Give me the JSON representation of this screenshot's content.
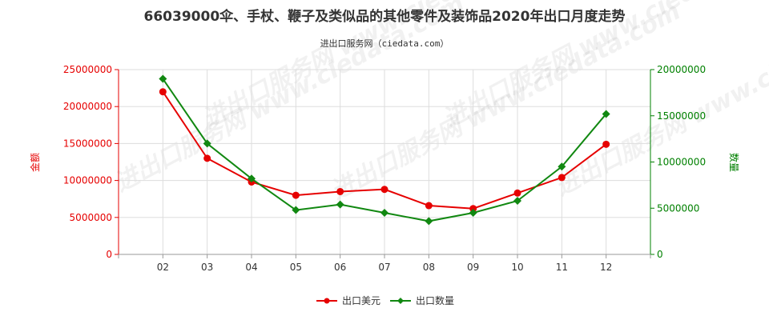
{
  "chart_data": {
    "type": "line",
    "title": "66039000伞、手杖、鞭子及类似品的其他零件及装饰品2020年出口月度走势",
    "subtitle": "进出口服务网（ciedata.com）",
    "watermark": "进出口服务网 www.ciedata.com",
    "categories": [
      "02",
      "03",
      "04",
      "05",
      "06",
      "07",
      "08",
      "09",
      "10",
      "11",
      "12"
    ],
    "left_axis": {
      "label": "金额",
      "ticks": [
        "0",
        "5000000",
        "10000000",
        "15000000",
        "20000000",
        "25000000"
      ],
      "ylim": [
        0,
        25000000
      ],
      "color": "#e60000"
    },
    "right_axis": {
      "label": "数量",
      "ticks": [
        "0",
        "5000000",
        "10000000",
        "15000000",
        "20000000"
      ],
      "ylim": [
        0,
        20000000
      ],
      "color": "#008000"
    },
    "series": [
      {
        "name": "出口美元",
        "axis": "left",
        "color": "#e60000",
        "marker": "circle",
        "values": [
          22000000,
          13000000,
          9800000,
          8000000,
          8500000,
          8800000,
          6600000,
          6200000,
          8300000,
          10400000,
          14900000
        ]
      },
      {
        "name": "出口数量",
        "axis": "right",
        "color": "#118811",
        "marker": "diamond",
        "values": [
          19000000,
          12000000,
          8200000,
          4800000,
          5400000,
          4500000,
          3600000,
          4500000,
          5800000,
          9500000,
          15200000
        ]
      }
    ],
    "grid": true,
    "legend": "bottom-center"
  }
}
